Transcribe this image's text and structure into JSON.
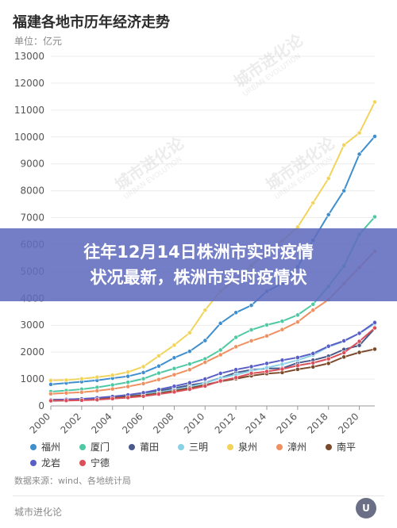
{
  "header": {
    "title": "福建各地市历年经济走势",
    "unit": "单位：亿元"
  },
  "overlay": {
    "line1": "往年12月14日株洲市实时疫情",
    "line2": "状况最新，株洲市实时疫情状"
  },
  "footer": {
    "source": "数据来源：wind、各地统计局",
    "brand": "城市进化论",
    "logo_text": "U"
  },
  "watermark": {
    "text": "城市进化论",
    "sub": "URBAN EVOLUTION"
  },
  "chart_data": {
    "type": "line",
    "x": [
      2000,
      2001,
      2002,
      2003,
      2004,
      2005,
      2006,
      2007,
      2008,
      2009,
      2010,
      2011,
      2012,
      2013,
      2014,
      2015,
      2016,
      2017,
      2018,
      2019,
      2020,
      2021
    ],
    "x_ticks": [
      2000,
      2002,
      2004,
      2006,
      2008,
      2010,
      2012,
      2014,
      2016,
      2018,
      2020
    ],
    "y_ticks": [
      0,
      1000,
      2000,
      3000,
      4000,
      5000,
      6000,
      7000,
      8000,
      9000,
      10000,
      11000,
      12000,
      13000
    ],
    "ylim": [
      0,
      13000
    ],
    "grid": true,
    "legend_position": "bottom",
    "series": [
      {
        "name": "福州",
        "color": "#3f8fcf",
        "values": [
          800,
          850,
          900,
          950,
          1030,
          1100,
          1240,
          1480,
          1790,
          2030,
          2430,
          3070,
          3470,
          3740,
          4260,
          4550,
          5170,
          6160,
          7110,
          8000,
          9360,
          10020
        ]
      },
      {
        "name": "厦门",
        "color": "#4fc9a4",
        "values": [
          530,
          570,
          620,
          690,
          780,
          880,
          1010,
          1220,
          1390,
          1560,
          1750,
          2080,
          2550,
          2830,
          3010,
          3150,
          3380,
          3780,
          4450,
          5200,
          6380,
          7030
        ]
      },
      {
        "name": "莆田",
        "color": "#4a5a8c",
        "values": [
          200,
          220,
          240,
          280,
          330,
          390,
          460,
          560,
          660,
          770,
          860,
          1040,
          1240,
          1340,
          1390,
          1400,
          1600,
          1700,
          1850,
          2100,
          2250,
          2880
        ]
      },
      {
        "name": "三明",
        "color": "#8ad0e6",
        "values": [
          180,
          200,
          220,
          250,
          290,
          350,
          430,
          510,
          600,
          700,
          850,
          1030,
          1160,
          1300,
          1420,
          1550,
          1700,
          1890,
          2200,
          2400,
          2700,
          3050
        ]
      },
      {
        "name": "泉州",
        "color": "#f2d45c",
        "values": [
          950,
          960,
          1010,
          1070,
          1140,
          1260,
          1460,
          1860,
          2260,
          2720,
          3560,
          4270,
          4700,
          5220,
          5730,
          6140,
          6650,
          7550,
          8460,
          9700,
          10150,
          11300
        ]
      },
      {
        "name": "漳州",
        "color": "#ef9060",
        "values": [
          450,
          480,
          510,
          560,
          630,
          720,
          830,
          980,
          1160,
          1350,
          1620,
          1900,
          2200,
          2420,
          2600,
          2840,
          3120,
          3560,
          3950,
          4550,
          5150,
          5750
        ]
      },
      {
        "name": "南平",
        "color": "#7a4a2a",
        "values": [
          230,
          240,
          260,
          280,
          310,
          350,
          400,
          470,
          560,
          660,
          780,
          910,
          1010,
          1120,
          1200,
          1240,
          1360,
          1450,
          1580,
          1820,
          1990,
          2110
        ]
      },
      {
        "name": "龙岩",
        "color": "#5a5fc6",
        "values": [
          220,
          240,
          260,
          300,
          350,
          410,
          490,
          610,
          730,
          860,
          1000,
          1210,
          1350,
          1460,
          1580,
          1700,
          1800,
          1950,
          2220,
          2420,
          2700,
          3100
        ]
      },
      {
        "name": "宁德",
        "color": "#d9505a",
        "values": [
          190,
          200,
          210,
          230,
          270,
          310,
          360,
          440,
          520,
          620,
          740,
          930,
          1050,
          1210,
          1280,
          1370,
          1500,
          1600,
          1750,
          1980,
          2400,
          2900
        ]
      }
    ]
  }
}
